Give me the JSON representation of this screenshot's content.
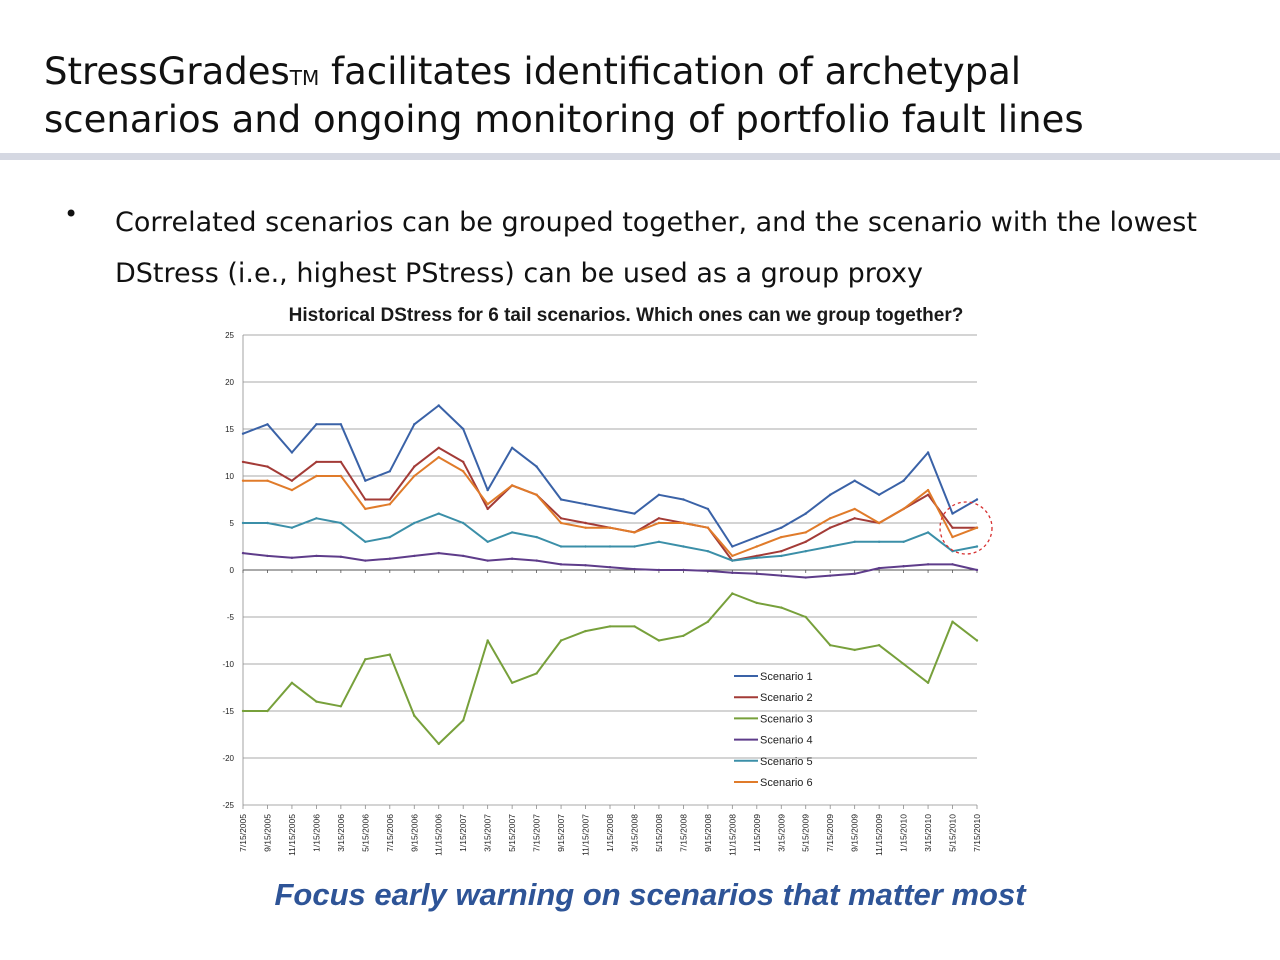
{
  "slide": {
    "title_line1_pre": "StressGrades",
    "title_tm": "TM",
    "title_line1_post": " facilitates identification of archetypal",
    "title_line2": "scenarios and ongoing monitoring of portfolio fault lines",
    "bullet_symbol": "•",
    "bullet_text": "Correlated scenarios can be grouped together, and the scenario with the lowest DStress (i.e., highest PStress) can be used as a group proxy",
    "caption": "Focus early warning on scenarios that matter most"
  },
  "chart_data": {
    "type": "line",
    "title": "Historical DStress for 6 tail scenarios.  Which ones can we group together?",
    "xlabel": "",
    "ylabel": "",
    "ylim": [
      -25,
      25
    ],
    "yticks": [
      25,
      20,
      15,
      10,
      5,
      0,
      -5,
      -10,
      -15,
      -20,
      -25
    ],
    "grid": "horizontal",
    "legend_position": "lower-right",
    "highlight": "dashed red circle around latest values (7/15/2010)",
    "categories": [
      "7/15/2005",
      "9/15/2005",
      "11/15/2005",
      "1/15/2006",
      "3/15/2006",
      "5/15/2006",
      "7/15/2006",
      "9/15/2006",
      "11/15/2006",
      "1/15/2007",
      "3/15/2007",
      "5/15/2007",
      "7/15/2007",
      "9/15/2007",
      "11/15/2007",
      "1/15/2008",
      "3/15/2008",
      "5/15/2008",
      "7/15/2008",
      "9/15/2008",
      "11/15/2008",
      "1/15/2009",
      "3/15/2009",
      "5/15/2009",
      "7/15/2009",
      "9/15/2009",
      "11/15/2009",
      "1/15/2010",
      "3/15/2010",
      "5/15/2010",
      "7/15/2010"
    ],
    "series": [
      {
        "name": "Scenario 1",
        "color": "#3a62a7",
        "values": [
          14.5,
          15.5,
          12.5,
          15.5,
          15.5,
          9.5,
          10.5,
          15.5,
          17.5,
          15.0,
          8.5,
          13.0,
          11.0,
          7.5,
          7.0,
          6.5,
          6.0,
          8.0,
          7.5,
          6.5,
          2.5,
          3.5,
          4.5,
          6.0,
          8.0,
          9.5,
          8.0,
          9.5,
          12.5,
          6.0,
          7.5
        ]
      },
      {
        "name": "Scenario 2",
        "color": "#a33b37",
        "values": [
          11.5,
          11.0,
          9.5,
          11.5,
          11.5,
          7.5,
          7.5,
          11.0,
          13.0,
          11.5,
          6.5,
          9.0,
          8.0,
          5.5,
          5.0,
          4.5,
          4.0,
          5.5,
          5.0,
          4.5,
          1.0,
          1.5,
          2.0,
          3.0,
          4.5,
          5.5,
          5.0,
          6.5,
          8.0,
          4.5,
          4.5
        ]
      },
      {
        "name": "Scenario 3",
        "color": "#77a03b",
        "values": [
          -15.0,
          -15.0,
          -12.0,
          -14.0,
          -14.5,
          -9.5,
          -9.0,
          -15.5,
          -18.5,
          -16.0,
          -7.5,
          -12.0,
          -11.0,
          -7.5,
          -6.5,
          -6.0,
          -6.0,
          -7.5,
          -7.0,
          -5.5,
          -2.5,
          -3.5,
          -4.0,
          -5.0,
          -8.0,
          -8.5,
          -8.0,
          -10.0,
          -12.0,
          -5.5,
          -7.5
        ]
      },
      {
        "name": "Scenario 4",
        "color": "#5e3c8a",
        "values": [
          1.8,
          1.5,
          1.3,
          1.5,
          1.4,
          1.0,
          1.2,
          1.5,
          1.8,
          1.5,
          1.0,
          1.2,
          1.0,
          0.6,
          0.5,
          0.3,
          0.1,
          0.0,
          0.0,
          -0.1,
          -0.3,
          -0.4,
          -0.6,
          -0.8,
          -0.6,
          -0.4,
          0.2,
          0.4,
          0.6,
          0.6,
          0.0
        ]
      },
      {
        "name": "Scenario 5",
        "color": "#3b8fa8",
        "values": [
          5.0,
          5.0,
          4.5,
          5.5,
          5.0,
          3.0,
          3.5,
          5.0,
          6.0,
          5.0,
          3.0,
          4.0,
          3.5,
          2.5,
          2.5,
          2.5,
          2.5,
          3.0,
          2.5,
          2.0,
          1.0,
          1.3,
          1.5,
          2.0,
          2.5,
          3.0,
          3.0,
          3.0,
          4.0,
          2.0,
          2.5
        ]
      },
      {
        "name": "Scenario 6",
        "color": "#e07b2a",
        "values": [
          9.5,
          9.5,
          8.5,
          10.0,
          10.0,
          6.5,
          7.0,
          10.0,
          12.0,
          10.5,
          7.0,
          9.0,
          8.0,
          5.0,
          4.5,
          4.5,
          4.0,
          5.0,
          5.0,
          4.5,
          1.5,
          2.5,
          3.5,
          4.0,
          5.5,
          6.5,
          5.0,
          6.5,
          8.5,
          3.5,
          4.5
        ]
      }
    ]
  }
}
